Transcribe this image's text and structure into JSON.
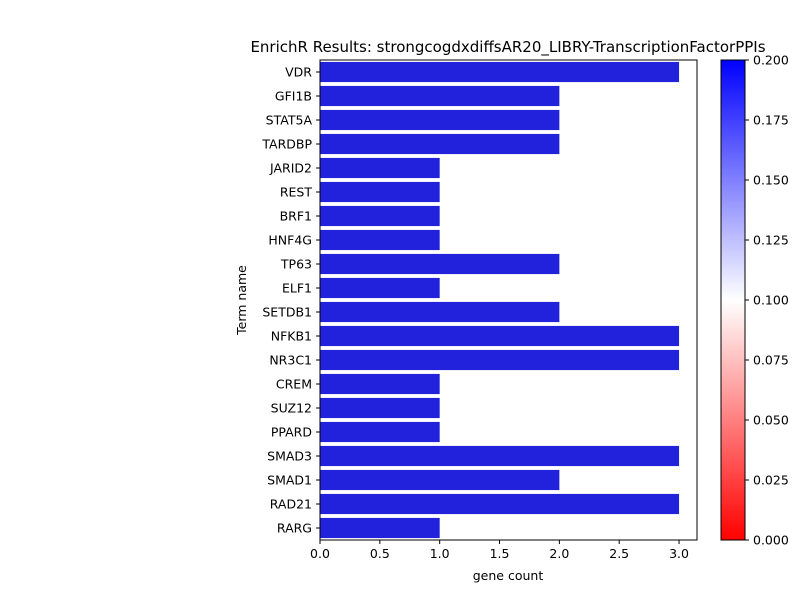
{
  "chart_data": {
    "type": "bar",
    "orientation": "horizontal",
    "title": "EnrichR Results: strongcogdxdiffsAR20_LIBRY-TranscriptionFactorPPIs",
    "xlabel": "gene count",
    "ylabel": "Term name",
    "categories": [
      "VDR",
      "GFI1B",
      "STAT5A",
      "TARDBP",
      "JARID2",
      "REST",
      "BRF1",
      "HNF4G",
      "TP63",
      "ELF1",
      "SETDB1",
      "NFKB1",
      "NR3C1",
      "CREM",
      "SUZ12",
      "PPARD",
      "SMAD3",
      "SMAD1",
      "RAD21",
      "RARG"
    ],
    "values": [
      3,
      2,
      2,
      2,
      1,
      1,
      1,
      1,
      2,
      1,
      2,
      3,
      3,
      1,
      1,
      1,
      3,
      2,
      3,
      1
    ],
    "bar_color": "#2222dd",
    "xlim": [
      0,
      3.15
    ],
    "xticks": [
      "0.0",
      "0.5",
      "1.0",
      "1.5",
      "2.0",
      "2.5",
      "3.0"
    ],
    "grid": false,
    "colorbar": {
      "range": [
        0,
        0.2
      ],
      "ticks": [
        "0.000",
        "0.025",
        "0.050",
        "0.075",
        "0.100",
        "0.125",
        "0.150",
        "0.175",
        "0.200"
      ],
      "colors": [
        "#ff0000",
        "#ffffff",
        "#0000ff"
      ]
    }
  }
}
